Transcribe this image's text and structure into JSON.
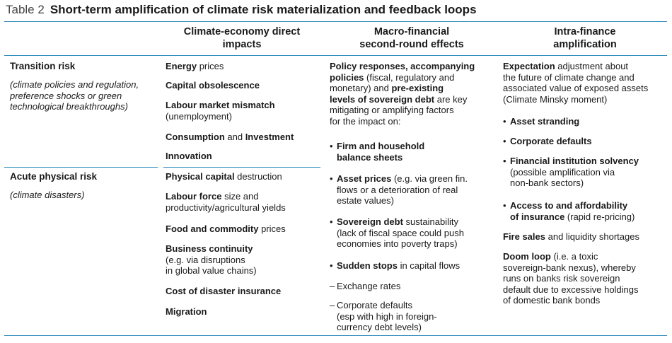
{
  "caption": {
    "label": "Table 2",
    "title": "Short-term amplification of climate risk materialization and feedback loops"
  },
  "columns": {
    "c1": [
      "Climate-economy direct",
      "impacts"
    ],
    "c2": [
      "Macro-financial",
      "second-round effects"
    ],
    "c3": [
      "Intra-finance",
      "amplification"
    ]
  },
  "rows": {
    "transition": {
      "label": "Transition risk",
      "sub": [
        "(climate policies and regulation,",
        "preference shocks or green",
        "technological breakthroughs)"
      ]
    },
    "physical": {
      "label": "Acute physical risk",
      "sub": [
        "(climate disasters)"
      ]
    }
  },
  "direct": {
    "energy": {
      "b": "Energy",
      "t": " prices"
    },
    "capital": {
      "b": "Capital obsolescence"
    },
    "labour": {
      "b": "Labour market mismatch",
      "t2": "(unemployment)"
    },
    "consumption": {
      "b": "Consumption",
      "t": " and ",
      "b2": "Investment"
    },
    "innovation": {
      "b": "Innovation"
    },
    "physcap": {
      "b": "Physical capital",
      "t": " destruction"
    },
    "labforce": {
      "b": "Labour force",
      "t": " size and",
      "t2": "productivity/agricultural yields"
    },
    "food": {
      "b": "Food and commodity",
      "t": " prices"
    },
    "business": {
      "b": "Business continuity",
      "t2": "(e.g. via disruptions",
      "t3": "in global value chains)"
    },
    "insurance": {
      "b": "Cost of disaster insurance"
    },
    "migration": {
      "b": "Migration"
    }
  },
  "macro": {
    "intro": {
      "l1b": "Policy responses, accompanying",
      "l2b": "policies",
      "l2t": " (fiscal, regulatory and",
      "l3t": "monetary) and ",
      "l3b": "pre-existing",
      "l4b": "levels of sovereign debt",
      "l4t": " are key",
      "l5": "mitigating or amplifying factors",
      "l6": "for the impact on:"
    },
    "firm": [
      "Firm and household",
      "balance sheets"
    ],
    "asset": {
      "b": "Asset prices",
      "t": " (e.g. via green fin.",
      "l2": "flows or a deterioration of real",
      "l3": "estate values)"
    },
    "sovereign": {
      "b": "Sovereign debt",
      "t": " sustainability",
      "l2": "(lack of fiscal space could push",
      "l3": "economies into poverty traps)"
    },
    "sudden": {
      "b": "Sudden stops",
      "t": " in capital flows"
    },
    "exchange": "Exchange rates",
    "corporate": [
      "Corporate defaults",
      "(esp with high in foreign-",
      "currency debt levels)"
    ]
  },
  "intra": {
    "expectation": {
      "b": "Expectation",
      "t": " adjustment about",
      "l2": "the future of climate change and",
      "l3": "associated value of exposed assets",
      "l4": "(Climate Minsky moment)"
    },
    "stranding": "Asset stranding",
    "defaults": "Corporate defaults",
    "solvency": {
      "b": "Financial institution solvency",
      "l2": "(possible amplification via",
      "l3": "non-bank sectors)"
    },
    "access": {
      "b1": "Access to and affordability",
      "b2": "of insurance",
      "t": " (rapid re-pricing)"
    },
    "fire": {
      "b": "Fire sales",
      "t": " and liquidity shortages"
    },
    "doom": {
      "b": "Doom loop",
      "t": " (i.e. a toxic",
      "l2": "sovereign-bank nexus), whereby",
      "l3": "runs on banks risk sovereign",
      "l4": "default due to excessive holdings",
      "l5": "of domestic bank bonds"
    }
  },
  "colors": {
    "rule": "#2f8dbc",
    "text": "#1a1a1a"
  }
}
